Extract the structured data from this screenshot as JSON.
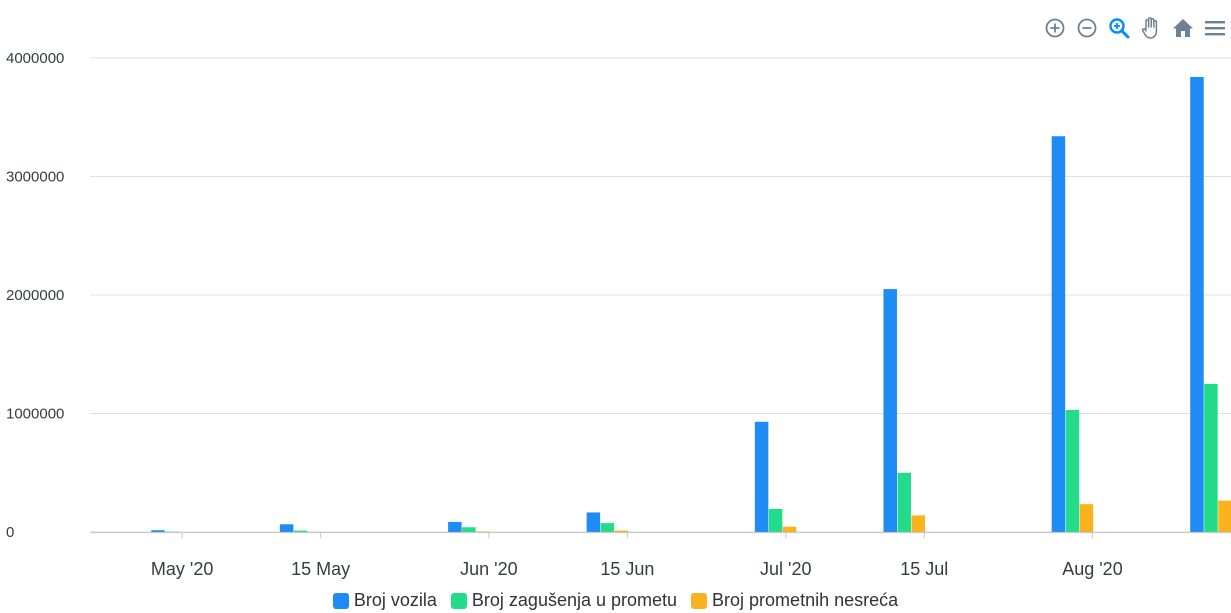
{
  "toolbar": {
    "icons": [
      "zoom-in-icon",
      "zoom-out-icon",
      "selection-zoom-icon",
      "pan-icon",
      "reset-home-icon",
      "menu-icon"
    ],
    "icon_color": "#6E8192",
    "active_icon_color": "#008FFB"
  },
  "colors": {
    "grid": "#e0e0e0",
    "axis_text": "#373d3f",
    "series": [
      "#1F8BF5",
      "#22DC8A",
      "#FAB21E"
    ]
  },
  "chart_data": {
    "type": "bar",
    "title": "",
    "xlabel": "",
    "ylabel": "",
    "x_axis": {
      "type": "datetime",
      "range": [
        "2020-04-23",
        "2020-08-15"
      ],
      "ticks": [
        {
          "date": "2020-05-01",
          "label": "May '20"
        },
        {
          "date": "2020-05-15",
          "label": "15 May"
        },
        {
          "date": "2020-06-01",
          "label": "Jun '20"
        },
        {
          "date": "2020-06-15",
          "label": "15 Jun"
        },
        {
          "date": "2020-07-01",
          "label": "Jul '20"
        },
        {
          "date": "2020-07-15",
          "label": "15 Jul"
        },
        {
          "date": "2020-08-01",
          "label": "Aug '20"
        }
      ]
    },
    "y_axis": {
      "ylim": [
        0,
        4000000
      ],
      "ticks": [
        0,
        1000000,
        2000000,
        3000000,
        4000000
      ],
      "tick_labels": [
        "0",
        "1000000",
        "2000000",
        "3000000",
        "4000000"
      ]
    },
    "grid": true,
    "legend_position": "bottom",
    "x": [
      "2020-04-30",
      "2020-05-13",
      "2020-05-30",
      "2020-06-13",
      "2020-06-30",
      "2020-07-13",
      "2020-07-30",
      "2020-08-13"
    ],
    "series": [
      {
        "name": "Broj vozila",
        "values": [
          15000,
          65000,
          85000,
          165000,
          930000,
          2050000,
          3340000,
          3840000
        ]
      },
      {
        "name": "Broj zagušenja u prometu",
        "values": [
          3000,
          12000,
          40000,
          75000,
          195000,
          500000,
          1030000,
          1250000
        ]
      },
      {
        "name": "Broj prometnih nesreća",
        "values": [
          500,
          2000,
          5000,
          12000,
          45000,
          140000,
          235000,
          265000
        ]
      }
    ]
  }
}
